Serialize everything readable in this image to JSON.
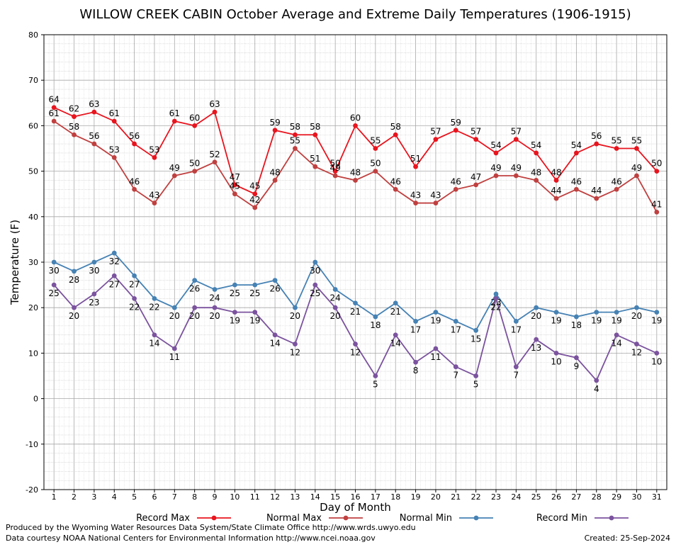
{
  "chart_data": {
    "type": "line",
    "title": "WILLOW CREEK CABIN October Average and Extreme Daily Temperatures (1906-1915)",
    "xlabel": "Day of Month",
    "ylabel": "Temperature (F)",
    "xlim": [
      0.5,
      31.5
    ],
    "ylim": [
      -20,
      80
    ],
    "y_ticks": [
      -20,
      -10,
      0,
      10,
      20,
      30,
      40,
      50,
      60,
      70,
      80
    ],
    "x": [
      1,
      2,
      3,
      4,
      5,
      6,
      7,
      8,
      9,
      10,
      11,
      12,
      13,
      14,
      15,
      16,
      17,
      18,
      19,
      20,
      21,
      22,
      23,
      24,
      25,
      26,
      27,
      28,
      29,
      30,
      31
    ],
    "grid": true,
    "legend_position": "bottom",
    "series": [
      {
        "name": "Record Max",
        "color": "#e8141e",
        "label_position": "above",
        "values": [
          64,
          62,
          63,
          61,
          56,
          53,
          61,
          60,
          63,
          47,
          45,
          59,
          58,
          58,
          50,
          60,
          55,
          58,
          51,
          57,
          59,
          57,
          54,
          57,
          54,
          48,
          54,
          56,
          55,
          55,
          50
        ]
      },
      {
        "name": "Normal Max",
        "color": "#c04040",
        "label_position": "above",
        "values": [
          61,
          58,
          56,
          53,
          46,
          43,
          49,
          50,
          52,
          45,
          42,
          48,
          55,
          51,
          49,
          48,
          50,
          46,
          43,
          43,
          46,
          47,
          49,
          49,
          48,
          44,
          46,
          44,
          46,
          49,
          41
        ]
      },
      {
        "name": "Normal Min",
        "color": "#4682b4",
        "label_position": "below",
        "values": [
          30,
          28,
          30,
          32,
          27,
          22,
          20,
          26,
          24,
          25,
          25,
          26,
          20,
          30,
          24,
          21,
          18,
          21,
          17,
          19,
          17,
          15,
          23,
          17,
          20,
          19,
          18,
          19,
          19,
          20,
          19
        ]
      },
      {
        "name": "Record Min",
        "color": "#7b539e",
        "label_position": "below",
        "values": [
          25,
          20,
          23,
          27,
          22,
          14,
          11,
          20,
          20,
          19,
          19,
          14,
          12,
          25,
          20,
          12,
          5,
          14,
          8,
          11,
          7,
          5,
          22,
          7,
          13,
          10,
          9,
          4,
          14,
          12,
          10
        ]
      }
    ]
  },
  "footer": {
    "produced_by": "Produced by the Wyoming Water Resources Data System/State Climate Office http://www.wrds.uwyo.edu",
    "courtesy": "Data courtesy NOAA National Centers for Environmental Information http://www.ncei.noaa.gov",
    "created": "Created: 25-Sep-2024"
  }
}
